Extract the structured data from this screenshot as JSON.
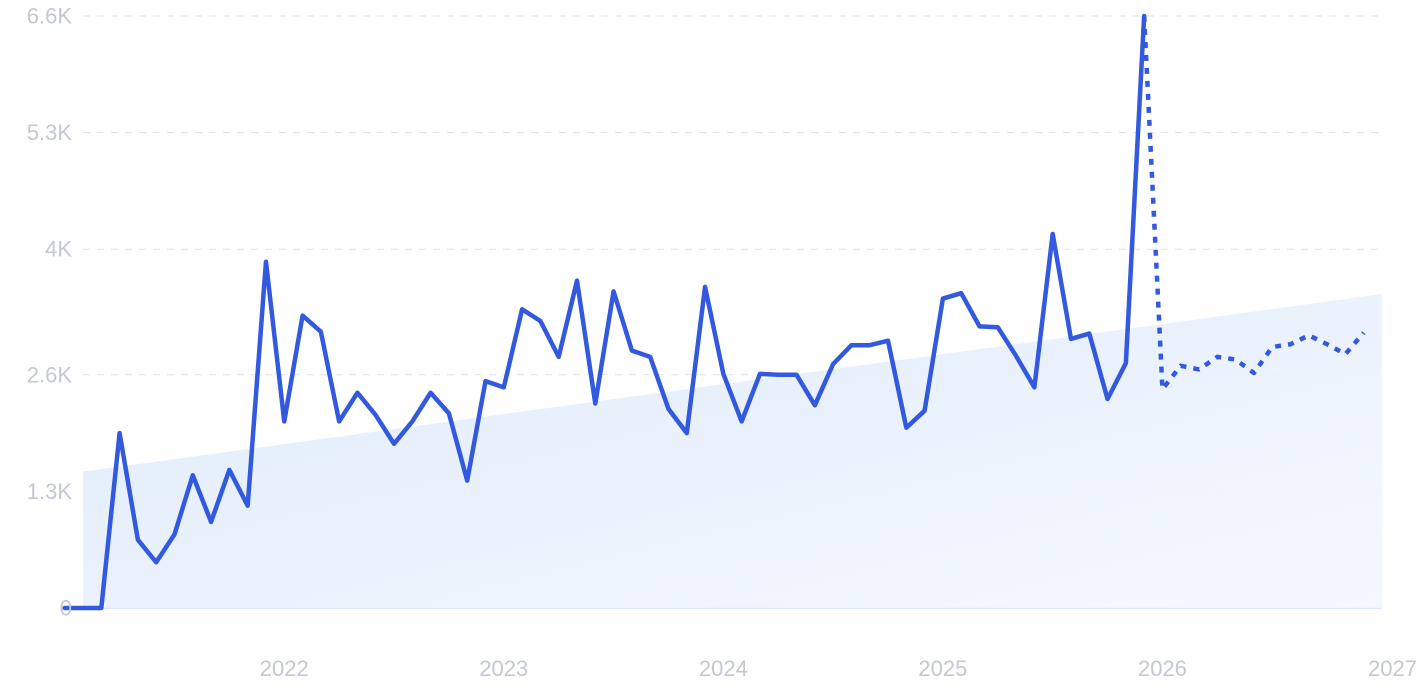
{
  "chart_data": {
    "type": "line",
    "title": "",
    "xlabel": "",
    "ylabel": "",
    "ylim": [
      0,
      6600
    ],
    "xlim": [
      "2021-01",
      "2027-01"
    ],
    "grid": true,
    "legend": "none",
    "y_ticks": [
      {
        "value": 0,
        "label": "0"
      },
      {
        "value": 1300,
        "label": "1.3K"
      },
      {
        "value": 2600,
        "label": "2.6K"
      },
      {
        "value": 4000,
        "label": "4K"
      },
      {
        "value": 5300,
        "label": "5.3K"
      },
      {
        "value": 6600,
        "label": "6.6K"
      }
    ],
    "x_ticks": [
      {
        "value": "2022-01",
        "label": "2022"
      },
      {
        "value": "2023-01",
        "label": "2023"
      },
      {
        "value": "2024-01",
        "label": "2024"
      },
      {
        "value": "2025-01",
        "label": "2025"
      },
      {
        "value": "2026-01",
        "label": "2026"
      },
      {
        "value": "2027-01",
        "label": "2027"
      }
    ],
    "series": [
      {
        "style": "solid",
        "color": "#3259e0",
        "points": [
          [
            "2021-01",
            0
          ],
          [
            "2021-02",
            0
          ],
          [
            "2021-03",
            0
          ],
          [
            "2021-04",
            1950
          ],
          [
            "2021-05",
            760
          ],
          [
            "2021-06",
            510
          ],
          [
            "2021-07",
            820
          ],
          [
            "2021-08",
            1480
          ],
          [
            "2021-09",
            960
          ],
          [
            "2021-10",
            1540
          ],
          [
            "2021-11",
            1140
          ],
          [
            "2021-12",
            3860
          ],
          [
            "2022-01",
            2080
          ],
          [
            "2022-02",
            3260
          ],
          [
            "2022-03",
            3080
          ],
          [
            "2022-04",
            2080
          ],
          [
            "2022-05",
            2400
          ],
          [
            "2022-06",
            2150
          ],
          [
            "2022-07",
            1830
          ],
          [
            "2022-08",
            2080
          ],
          [
            "2022-09",
            2400
          ],
          [
            "2022-10",
            2170
          ],
          [
            "2022-11",
            1420
          ],
          [
            "2022-12",
            2530
          ],
          [
            "2023-01",
            2460
          ],
          [
            "2023-02",
            3330
          ],
          [
            "2023-03",
            3200
          ],
          [
            "2023-04",
            2800
          ],
          [
            "2023-05",
            3650
          ],
          [
            "2023-06",
            2280
          ],
          [
            "2023-07",
            3530
          ],
          [
            "2023-08",
            2870
          ],
          [
            "2023-09",
            2800
          ],
          [
            "2023-10",
            2220
          ],
          [
            "2023-11",
            1950
          ],
          [
            "2023-12",
            3580
          ],
          [
            "2024-01",
            2610
          ],
          [
            "2024-02",
            2080
          ],
          [
            "2024-03",
            2610
          ],
          [
            "2024-04",
            2600
          ],
          [
            "2024-05",
            2600
          ],
          [
            "2024-06",
            2260
          ],
          [
            "2024-07",
            2720
          ],
          [
            "2024-08",
            2930
          ],
          [
            "2024-09",
            2930
          ],
          [
            "2024-10",
            2980
          ],
          [
            "2024-11",
            2010
          ],
          [
            "2024-12",
            2200
          ],
          [
            "2025-01",
            3450
          ],
          [
            "2025-02",
            3510
          ],
          [
            "2025-03",
            3140
          ],
          [
            "2025-04",
            3130
          ],
          [
            "2025-05",
            2810
          ],
          [
            "2025-06",
            2460
          ],
          [
            "2025-07",
            4170
          ],
          [
            "2025-08",
            3000
          ],
          [
            "2025-09",
            3060
          ],
          [
            "2025-10",
            2330
          ],
          [
            "2025-11",
            2730
          ],
          [
            "2025-12",
            6600
          ]
        ]
      },
      {
        "style": "dotted",
        "color": "#3259e0",
        "points": [
          [
            "2025-12",
            6600
          ],
          [
            "2026-01",
            2440
          ],
          [
            "2026-02",
            2700
          ],
          [
            "2026-03",
            2660
          ],
          [
            "2026-04",
            2800
          ],
          [
            "2026-05",
            2770
          ],
          [
            "2026-06",
            2620
          ],
          [
            "2026-07",
            2910
          ],
          [
            "2026-08",
            2940
          ],
          [
            "2026-09",
            3040
          ],
          [
            "2026-10",
            2940
          ],
          [
            "2026-11",
            2830
          ],
          [
            "2026-12",
            3070
          ]
        ]
      }
    ],
    "trend_area": {
      "color": "#d6e6fb",
      "start": [
        "2021-01",
        1520
      ],
      "end": [
        "2026-12",
        3500
      ]
    }
  }
}
